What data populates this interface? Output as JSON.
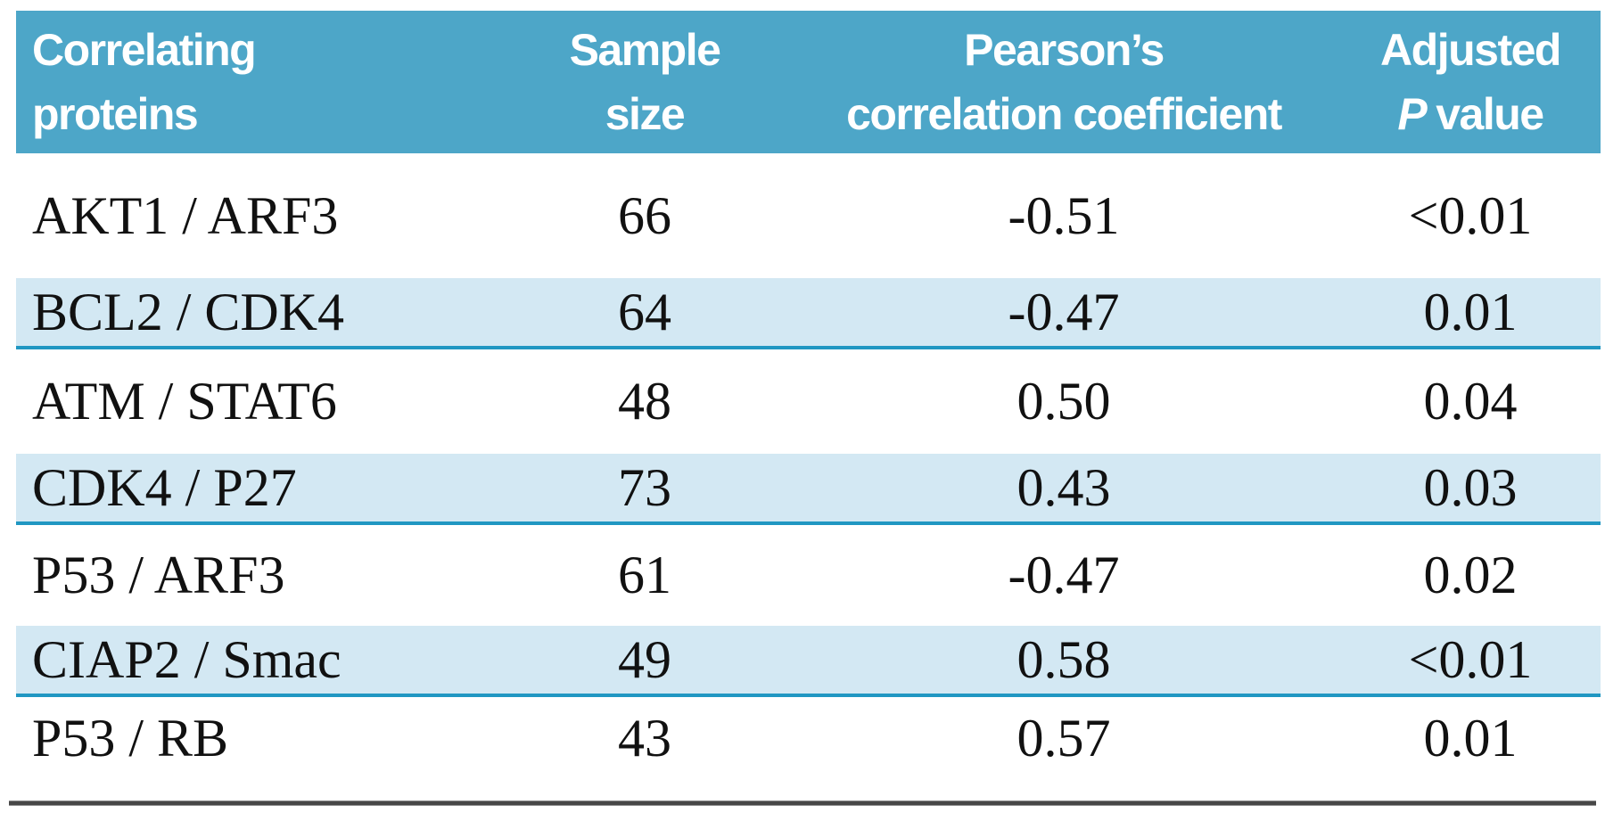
{
  "table": {
    "columns": [
      {
        "line1": "Correlating",
        "line2": "proteins"
      },
      {
        "line1": "Sample",
        "line2": "size"
      },
      {
        "line1": "Pearson’s",
        "line2": "correlation coefficient"
      },
      {
        "line1": "Adjusted",
        "line2_italic": "P",
        "line2": "value"
      }
    ],
    "rows": [
      {
        "proteins": "AKT1 / ARF3",
        "sample_size": "66",
        "pearson": "-0.51",
        "p_value": "<0.01"
      },
      {
        "proteins": "BCL2 / CDK4",
        "sample_size": "64",
        "pearson": "-0.47",
        "p_value": "0.01"
      },
      {
        "proteins": "ATM / STAT6",
        "sample_size": "48",
        "pearson": "0.50",
        "p_value": "0.04"
      },
      {
        "proteins": "CDK4 / P27",
        "sample_size": "73",
        "pearson": "0.43",
        "p_value": "0.03"
      },
      {
        "proteins": "P53 / ARF3",
        "sample_size": "61",
        "pearson": "-0.47",
        "p_value": "0.02"
      },
      {
        "proteins": "CIAP2 / Smac",
        "sample_size": "49",
        "pearson": "0.58",
        "p_value": "<0.01"
      },
      {
        "proteins": "P53 / RB",
        "sample_size": "43",
        "pearson": "0.57",
        "p_value": "0.01"
      }
    ]
  },
  "colors": {
    "header_bg": "#4da6c8",
    "header_text": "#ffffff",
    "row_stripe": "#d3e8f3",
    "stripe_underline": "#2097c2",
    "body_text": "#111111",
    "bottom_rule": "#474747"
  },
  "chart_data": {
    "type": "table",
    "title": "",
    "columns": [
      "Correlating proteins",
      "Sample size",
      "Pearson's correlation coefficient",
      "Adjusted P value"
    ],
    "rows": [
      [
        "AKT1 / ARF3",
        66,
        -0.51,
        "<0.01"
      ],
      [
        "BCL2 / CDK4",
        64,
        -0.47,
        "0.01"
      ],
      [
        "ATM / STAT6",
        48,
        0.5,
        "0.04"
      ],
      [
        "CDK4 / P27",
        73,
        0.43,
        "0.03"
      ],
      [
        "P53 / ARF3",
        61,
        -0.47,
        "0.02"
      ],
      [
        "CIAP2 / Smac",
        49,
        0.58,
        "<0.01"
      ],
      [
        "P53 / RB",
        43,
        0.57,
        "0.01"
      ]
    ]
  }
}
